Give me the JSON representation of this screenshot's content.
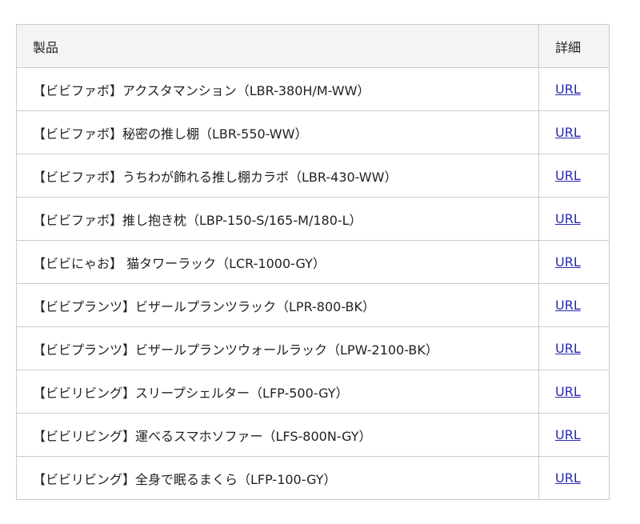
{
  "table": {
    "headers": [
      "製品",
      "詳細"
    ],
    "rows": [
      {
        "product": "【ビビファボ】アクスタマンション（LBR-380H/M-WW）",
        "link": "URL"
      },
      {
        "product": "【ビビファボ】秘密の推し棚（LBR-550-WW）",
        "link": "URL"
      },
      {
        "product": "【ビビファボ】うちわが飾れる推し棚カラボ（LBR-430-WW）",
        "link": "URL"
      },
      {
        "product": "【ビビファボ】推し抱き枕（LBP-150-S/165-M/180-L）",
        "link": "URL"
      },
      {
        "product": "【ビビにゃお】 猫タワーラック（LCR-1000-GY）",
        "link": "URL"
      },
      {
        "product": "【ビビプランツ】ビザールプランツラック（LPR-800-BK）",
        "link": "URL"
      },
      {
        "product": "【ビビプランツ】ビザールプランツウォールラック（LPW-2100-BK）",
        "link": "URL"
      },
      {
        "product": "【ビビリビング】スリープシェルター（LFP-500-GY）",
        "link": "URL"
      },
      {
        "product": "【ビビリビング】運べるスマホソファー（LFS-800N-GY）",
        "link": "URL"
      },
      {
        "product": "【ビビリビング】全身で眠るまくら（LFP-100-GY）",
        "link": "URL"
      }
    ]
  }
}
